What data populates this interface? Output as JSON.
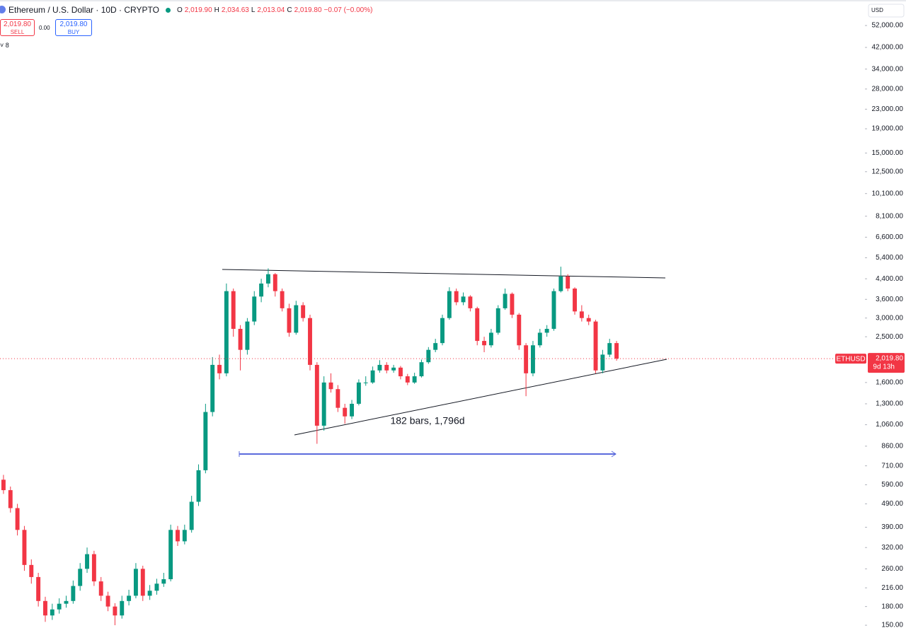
{
  "chart_data": {
    "type": "candlestick",
    "title": "Ethereum / U.S. Dollar · 10D · CRYPTO",
    "header": {
      "o_label": "O",
      "o": "2,019.90",
      "h_label": "H",
      "h": "2,034.63",
      "l_label": "L",
      "l": "2,013.04",
      "c_label": "C",
      "c": "2,019.80",
      "change": "−0.07 (−0.00%)"
    },
    "trade": {
      "sell_price": "2,019.80",
      "sell": "SELL",
      "spread": "0.00",
      "buy_price": "2,019.80",
      "buy": "BUY"
    },
    "indicators_count": "8",
    "currency": "USD",
    "price_tag": {
      "symbol": "ETHUSD",
      "value": 2019.8,
      "label": "2,019.80",
      "countdown": "9d 13h"
    },
    "annotation": "182 bars, 1,796d",
    "log_scale": true,
    "up_color": "#089981",
    "down_color": "#f23645",
    "ylim": [
      146,
      66700
    ],
    "yticks": [
      {
        "value": 52000,
        "label": "52,000.00"
      },
      {
        "value": 42000,
        "label": "42,000.00"
      },
      {
        "value": 34000,
        "label": "34,000.00"
      },
      {
        "value": 28000,
        "label": "28,000.00"
      },
      {
        "value": 23000,
        "label": "23,000.00"
      },
      {
        "value": 19000,
        "label": "19,000.00"
      },
      {
        "value": 15000,
        "label": "15,000.00"
      },
      {
        "value": 12500,
        "label": "12,500.00"
      },
      {
        "value": 10100,
        "label": "10,100.00"
      },
      {
        "value": 8100,
        "label": "8,100.00"
      },
      {
        "value": 6600,
        "label": "6,600.00"
      },
      {
        "value": 5400,
        "label": "5,400.00"
      },
      {
        "value": 4400,
        "label": "4,400.00"
      },
      {
        "value": 3600,
        "label": "3,600.00"
      },
      {
        "value": 3000,
        "label": "3,000.00"
      },
      {
        "value": 2500,
        "label": "2,500.00"
      },
      {
        "value": 1600,
        "label": "1,600.00"
      },
      {
        "value": 1300,
        "label": "1,300.00"
      },
      {
        "value": 1060,
        "label": "1,060.00"
      },
      {
        "value": 860,
        "label": "860.00"
      },
      {
        "value": 710,
        "label": "710.00"
      },
      {
        "value": 590,
        "label": "590.00"
      },
      {
        "value": 490,
        "label": "490.00"
      },
      {
        "value": 390,
        "label": "390.00"
      },
      {
        "value": 320,
        "label": "320.00"
      },
      {
        "value": 260,
        "label": "260.00"
      },
      {
        "value": 216,
        "label": "216.00"
      },
      {
        "value": 180,
        "label": "180.00"
      },
      {
        "value": 150,
        "label": "150.00"
      }
    ],
    "candles": [
      [
        620,
        650,
        540,
        560
      ],
      [
        560,
        580,
        450,
        470
      ],
      [
        470,
        490,
        360,
        380
      ],
      [
        380,
        395,
        255,
        270
      ],
      [
        270,
        285,
        225,
        240
      ],
      [
        240,
        250,
        180,
        190
      ],
      [
        190,
        198,
        155,
        165
      ],
      [
        165,
        185,
        158,
        175
      ],
      [
        175,
        195,
        168,
        185
      ],
      [
        185,
        200,
        178,
        190
      ],
      [
        190,
        232,
        185,
        220
      ],
      [
        220,
        275,
        210,
        260
      ],
      [
        260,
        320,
        250,
        300
      ],
      [
        300,
        310,
        220,
        230
      ],
      [
        230,
        240,
        190,
        200
      ],
      [
        200,
        208,
        172,
        180
      ],
      [
        180,
        186,
        150,
        165
      ],
      [
        165,
        200,
        160,
        190
      ],
      [
        190,
        212,
        182,
        200
      ],
      [
        200,
        275,
        195,
        260
      ],
      [
        260,
        268,
        190,
        200
      ],
      [
        200,
        222,
        192,
        210
      ],
      [
        210,
        236,
        202,
        225
      ],
      [
        225,
        250,
        218,
        235
      ],
      [
        235,
        400,
        230,
        380
      ],
      [
        380,
        395,
        325,
        340
      ],
      [
        340,
        400,
        330,
        380
      ],
      [
        380,
        530,
        370,
        500
      ],
      [
        500,
        720,
        480,
        680
      ],
      [
        680,
        1300,
        660,
        1200
      ],
      [
        1200,
        2050,
        1150,
        1900
      ],
      [
        1900,
        2100,
        1650,
        1750
      ],
      [
        1750,
        4200,
        1700,
        3900
      ],
      [
        3900,
        4000,
        2500,
        2700
      ],
      [
        2700,
        2800,
        1800,
        2200
      ],
      [
        2200,
        3000,
        2100,
        2900
      ],
      [
        2900,
        3900,
        2800,
        3700
      ],
      [
        3700,
        4400,
        3500,
        4200
      ],
      [
        4200,
        4870,
        4050,
        4600
      ],
      [
        4600,
        4650,
        3700,
        3900
      ],
      [
        3900,
        4000,
        3200,
        3300
      ],
      [
        3300,
        3450,
        2500,
        2600
      ],
      [
        2600,
        3550,
        2550,
        3400
      ],
      [
        3400,
        3500,
        2900,
        3000
      ],
      [
        3000,
        3100,
        1800,
        1900
      ],
      [
        1900,
        1950,
        880,
        1050
      ],
      [
        1050,
        1700,
        1000,
        1600
      ],
      [
        1600,
        1750,
        1450,
        1500
      ],
      [
        1500,
        1560,
        1200,
        1250
      ],
      [
        1250,
        1300,
        1070,
        1150
      ],
      [
        1150,
        1350,
        1120,
        1300
      ],
      [
        1300,
        1650,
        1280,
        1600
      ],
      [
        1600,
        1700,
        1550,
        1600
      ],
      [
        1600,
        1870,
        1580,
        1800
      ],
      [
        1800,
        1990,
        1760,
        1900
      ],
      [
        1900,
        1950,
        1750,
        1800
      ],
      [
        1800,
        1900,
        1760,
        1850
      ],
      [
        1850,
        1880,
        1650,
        1700
      ],
      [
        1700,
        1740,
        1560,
        1600
      ],
      [
        1600,
        1760,
        1580,
        1700
      ],
      [
        1700,
        2000,
        1680,
        1950
      ],
      [
        1950,
        2260,
        1920,
        2200
      ],
      [
        2200,
        2450,
        2150,
        2350
      ],
      [
        2350,
        3100,
        2300,
        3000
      ],
      [
        3000,
        4050,
        2950,
        3900
      ],
      [
        3900,
        4000,
        3400,
        3500
      ],
      [
        3500,
        3850,
        3400,
        3700
      ],
      [
        3700,
        3750,
        3200,
        3300
      ],
      [
        3300,
        3350,
        2300,
        2400
      ],
      [
        2400,
        2500,
        2150,
        2300
      ],
      [
        2300,
        2700,
        2250,
        2600
      ],
      [
        2600,
        3400,
        2550,
        3300
      ],
      [
        3300,
        4000,
        3250,
        3800
      ],
      [
        3800,
        3850,
        3000,
        3100
      ],
      [
        3100,
        3150,
        2200,
        2300
      ],
      [
        2300,
        2350,
        1400,
        1750
      ],
      [
        1750,
        2400,
        1700,
        2300
      ],
      [
        2300,
        2700,
        2250,
        2600
      ],
      [
        2600,
        2800,
        2500,
        2700
      ],
      [
        2700,
        4000,
        2650,
        3900
      ],
      [
        3900,
        4950,
        3850,
        4500
      ],
      [
        4500,
        4600,
        3900,
        4000
      ],
      [
        4000,
        4050,
        3100,
        3200
      ],
      [
        3200,
        3400,
        2900,
        3000
      ],
      [
        3000,
        3100,
        2800,
        2900
      ],
      [
        2900,
        2950,
        1750,
        1800
      ],
      [
        1800,
        2200,
        1750,
        2100
      ],
      [
        2100,
        2450,
        2050,
        2350
      ],
      [
        2350,
        2400,
        1980,
        2019.8
      ]
    ]
  }
}
